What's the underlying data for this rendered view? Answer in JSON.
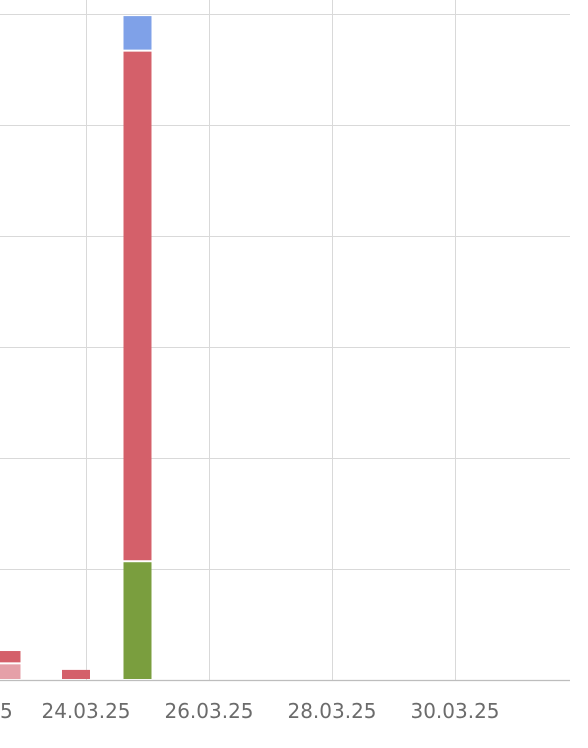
{
  "chart_data": {
    "type": "bar",
    "stacked": true,
    "title": "",
    "xlabel": "",
    "ylabel": "",
    "x_tick_labels": [
      "5",
      "24.03.25",
      "26.03.25",
      "28.03.25",
      "30.03.25"
    ],
    "categories": [
      "23.03.25",
      "24.03.25",
      "25.03.25"
    ],
    "ylim": [
      0,
      6
    ],
    "grid": true,
    "legend": "none",
    "series": [
      {
        "color": "#7a9e3e",
        "values": [
          0,
          0,
          1.07
        ]
      },
      {
        "color": "#e5a0a8",
        "values": [
          0.15,
          0,
          0
        ]
      },
      {
        "color": "#d4606a",
        "values": [
          0.12,
          0.1,
          4.6
        ]
      },
      {
        "color": "#7fa1e8",
        "values": [
          0,
          0,
          0.32
        ]
      }
    ]
  }
}
